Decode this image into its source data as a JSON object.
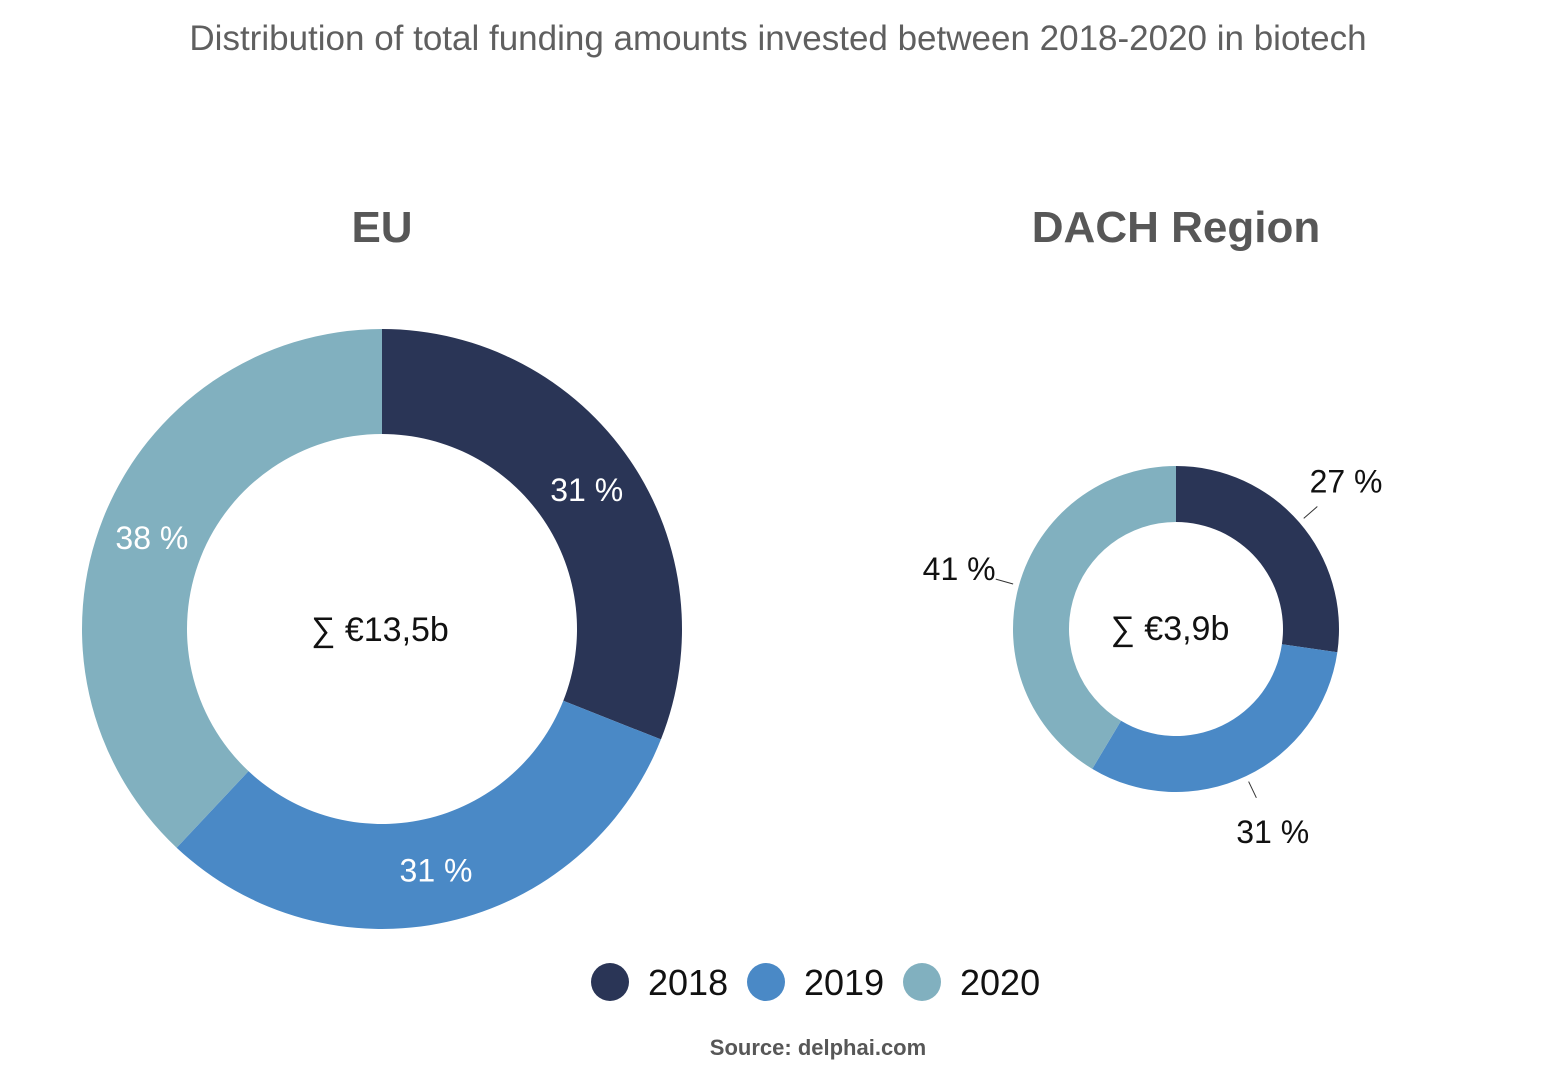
{
  "title": "Distribution of total funding amounts invested between 2018-2020 in biotech",
  "source": "Source: delphai.com",
  "colors": {
    "2018": "#2a3556",
    "2019": "#4a89c6",
    "2020": "#81b0bf"
  },
  "legend": [
    {
      "label": "2018",
      "color": "#2a3556"
    },
    {
      "label": "2019",
      "color": "#4a89c6"
    },
    {
      "label": "2020",
      "color": "#81b0bf"
    }
  ],
  "chart_data": [
    {
      "type": "pie",
      "subtype": "donut",
      "title": "EU",
      "center_label": "∑ €13,5b",
      "categories": [
        "2018",
        "2019",
        "2020"
      ],
      "values": [
        31,
        31,
        38
      ],
      "labels": [
        "31 %",
        "31 %",
        "38 %"
      ],
      "label_placement": "inside"
    },
    {
      "type": "pie",
      "subtype": "donut",
      "title": "DACH Region",
      "center_label": "∑ €3,9b",
      "categories": [
        "2018",
        "2019",
        "2020"
      ],
      "values": [
        27,
        31,
        41
      ],
      "labels": [
        "27 %",
        "31 %",
        "41 %"
      ],
      "label_placement": "outside"
    }
  ]
}
